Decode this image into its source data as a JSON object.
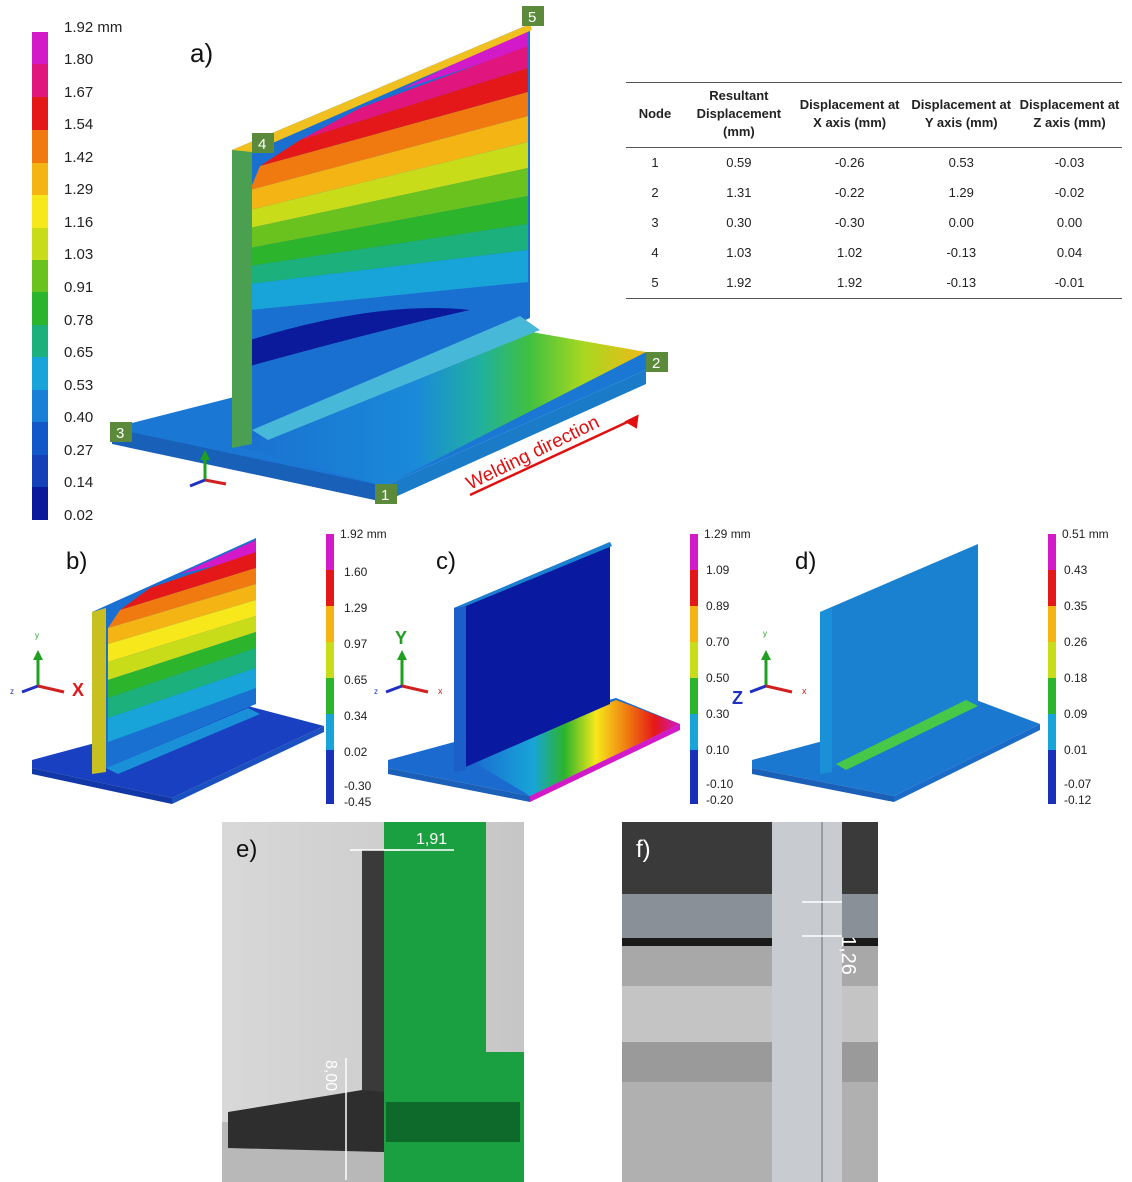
{
  "panel_labels": {
    "a": "a)",
    "b": "b)",
    "c": "c)",
    "d": "d)",
    "e": "e)",
    "f": "f)"
  },
  "legend_a": {
    "top_label": "1.92 mm",
    "ticks": [
      "1.80",
      "1.67",
      "1.54",
      "1.42",
      "1.29",
      "1.16",
      "1.03",
      "0.91",
      "0.78",
      "0.65",
      "0.53",
      "0.40",
      "0.27",
      "0.14",
      "0.02"
    ]
  },
  "legend_b": {
    "top_label": "1.92 mm",
    "ticks": [
      "1.60",
      "1.29",
      "0.97",
      "0.65",
      "0.34",
      "0.02",
      "-0.30",
      "-0.45"
    ]
  },
  "legend_c": {
    "top_label": "1.29 mm",
    "ticks": [
      "1.09",
      "0.89",
      "0.70",
      "0.50",
      "0.30",
      "0.10",
      "-0.10",
      "-0.20"
    ]
  },
  "legend_d": {
    "top_label": "0.51 mm",
    "ticks": [
      "0.43",
      "0.35",
      "0.26",
      "0.18",
      "0.09",
      "0.01",
      "-0.07",
      "-0.12"
    ]
  },
  "nodes_a": {
    "n1": "1",
    "n2": "2",
    "n3": "3",
    "n4": "4",
    "n5": "5"
  },
  "welding_direction": "Welding direction",
  "axis_labels": {
    "x": "X",
    "y": "Y",
    "z": "Z",
    "x_small": "x",
    "y_small": "y",
    "z_small": "z"
  },
  "table": {
    "headers": [
      "Node",
      "Resultant Displacement (mm)",
      "Displacement at X axis (mm)",
      "Displacement at Y axis (mm)",
      "Displacement at Z axis (mm)"
    ],
    "rows": [
      [
        "1",
        "0.59",
        "-0.26",
        "0.53",
        "-0.03"
      ],
      [
        "2",
        "1.31",
        "-0.22",
        "1.29",
        "-0.02"
      ],
      [
        "3",
        "0.30",
        "-0.30",
        "0.00",
        "0.00"
      ],
      [
        "4",
        "1.03",
        "1.02",
        "-0.13",
        "0.04"
      ],
      [
        "5",
        "1.92",
        "1.92",
        "-0.13",
        "-0.01"
      ]
    ]
  },
  "photo_e": {
    "top_measure": "1,91",
    "side_measure": "8,00"
  },
  "photo_f": {
    "measure": "1,26"
  },
  "colors": {
    "legend_scale": [
      "#d21ac8",
      "#e0157e",
      "#e41818",
      "#f07a10",
      "#f4b414",
      "#f6e81a",
      "#c8dc1a",
      "#6ac21e",
      "#2cb42c",
      "#1cb07c",
      "#18a4d8",
      "#1880d6",
      "#1258c8",
      "#0a1a9a"
    ],
    "node_box": "#5a8a3a",
    "welding_arrow": "#e01010"
  }
}
